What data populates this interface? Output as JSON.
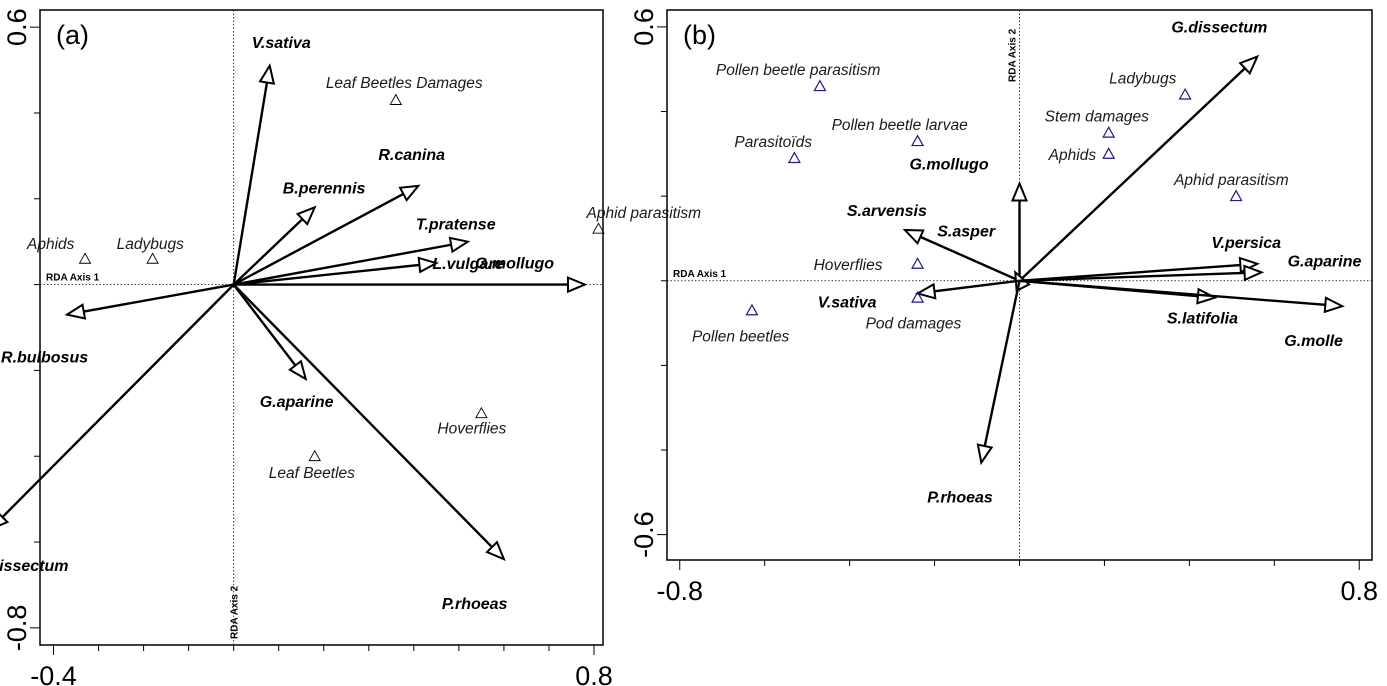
{
  "chart_data": [
    {
      "type": "scatter",
      "panel_label": "(a)",
      "xlabel": "RDA Axis 1",
      "ylabel": "RDA Axis 2",
      "xlim": [
        -0.43,
        0.82
      ],
      "ylim": [
        -0.84,
        0.64
      ],
      "x_ticks": [
        -0.4,
        0.8
      ],
      "y_ticks": [
        0.6,
        -0.8
      ],
      "x_tick_labels": [
        "-0.4",
        "0.8"
      ],
      "y_tick_labels": [
        "0.6",
        "-0.8"
      ],
      "minor_x_ticks": [
        -0.3,
        -0.2,
        -0.1,
        0.0,
        0.1,
        0.2,
        0.3,
        0.4,
        0.5,
        0.6,
        0.7
      ],
      "minor_y_ticks": [
        0.4,
        0.2,
        0.0,
        -0.2,
        -0.4,
        -0.6
      ],
      "arrows": [
        {
          "name": "V.sativa",
          "x": 0.08,
          "y": 0.51
        },
        {
          "name": "R.canina",
          "x": 0.41,
          "y": 0.23
        },
        {
          "name": "B.perennis",
          "x": 0.18,
          "y": 0.18
        },
        {
          "name": "T.pratense",
          "x": 0.52,
          "y": 0.1
        },
        {
          "name": "L.vulgare",
          "x": 0.45,
          "y": 0.05
        },
        {
          "name": "G.mollugo",
          "x": 0.78,
          "y": 0.0
        },
        {
          "name": "R.bulbosus",
          "x": -0.37,
          "y": -0.07
        },
        {
          "name": "G.aparine",
          "x": 0.16,
          "y": -0.22
        },
        {
          "name": "P.rhoeas",
          "x": 0.6,
          "y": -0.64
        },
        {
          "name": "G.dissectum",
          "x": -0.54,
          "y": -0.57
        }
      ],
      "points": [
        {
          "name": "Leaf Beetles Damages",
          "x": 0.36,
          "y": 0.43
        },
        {
          "name": "Aphid parasitism",
          "x": 0.81,
          "y": 0.13
        },
        {
          "name": "Aphids",
          "x": -0.33,
          "y": 0.06
        },
        {
          "name": "Ladybugs",
          "x": -0.18,
          "y": 0.06
        },
        {
          "name": "Hoverflies",
          "x": 0.55,
          "y": -0.3
        },
        {
          "name": "Leaf Beetles",
          "x": 0.18,
          "y": -0.4
        }
      ]
    },
    {
      "type": "scatter",
      "panel_label": "(b)",
      "xlabel": "RDA Axis 1",
      "ylabel": "RDA Axis 2",
      "xlim": [
        -0.83,
        0.83
      ],
      "ylim": [
        -0.66,
        0.64
      ],
      "x_ticks": [
        -0.8,
        0.8
      ],
      "y_ticks": [
        0.6,
        -0.6
      ],
      "x_tick_labels": [
        "-0.8",
        "0.8"
      ],
      "y_tick_labels": [
        "0.6",
        "-0.6"
      ],
      "minor_x_ticks": [
        -0.6,
        -0.4,
        -0.2,
        0.0,
        0.2,
        0.4,
        0.6
      ],
      "minor_y_ticks": [
        0.4,
        0.2,
        0.0,
        -0.2,
        -0.4
      ],
      "arrows": [
        {
          "name": "G.dissectum",
          "x": 0.56,
          "y": 0.53
        },
        {
          "name": "G.mollugo",
          "x": 0.0,
          "y": 0.23
        },
        {
          "name": "S.arvensis",
          "x": -0.27,
          "y": 0.12
        },
        {
          "name": "S.asper",
          "x": -0.01,
          "y": 0.02
        },
        {
          "name": "V.persica",
          "x": 0.56,
          "y": 0.04
        },
        {
          "name": "G.aparine",
          "x": 0.57,
          "y": 0.02
        },
        {
          "name": "V.sativa",
          "x": -0.24,
          "y": -0.03
        },
        {
          "name": "S.latifolia",
          "x": 0.46,
          "y": -0.04
        },
        {
          "name": "G.molle",
          "x": 0.76,
          "y": -0.06
        },
        {
          "name": "P.rhoeas",
          "x": -0.09,
          "y": -0.43
        }
      ],
      "points": [
        {
          "name": "Pollen beetle parasitism",
          "x": -0.47,
          "y": 0.46
        },
        {
          "name": "Ladybugs",
          "x": 0.39,
          "y": 0.44
        },
        {
          "name": "Pollen beetle larvae",
          "x": -0.24,
          "y": 0.33
        },
        {
          "name": "Stem damages",
          "x": 0.21,
          "y": 0.35
        },
        {
          "name": "Parasitoïds",
          "x": -0.53,
          "y": 0.29
        },
        {
          "name": "Aphids",
          "x": 0.21,
          "y": 0.3
        },
        {
          "name": "Aphid parasitism",
          "x": 0.51,
          "y": 0.2
        },
        {
          "name": "Hoverflies",
          "x": -0.24,
          "y": 0.04
        },
        {
          "name": "Pod damages",
          "x": -0.24,
          "y": -0.04
        },
        {
          "name": "Pollen beetles",
          "x": -0.63,
          "y": -0.07
        }
      ]
    }
  ]
}
